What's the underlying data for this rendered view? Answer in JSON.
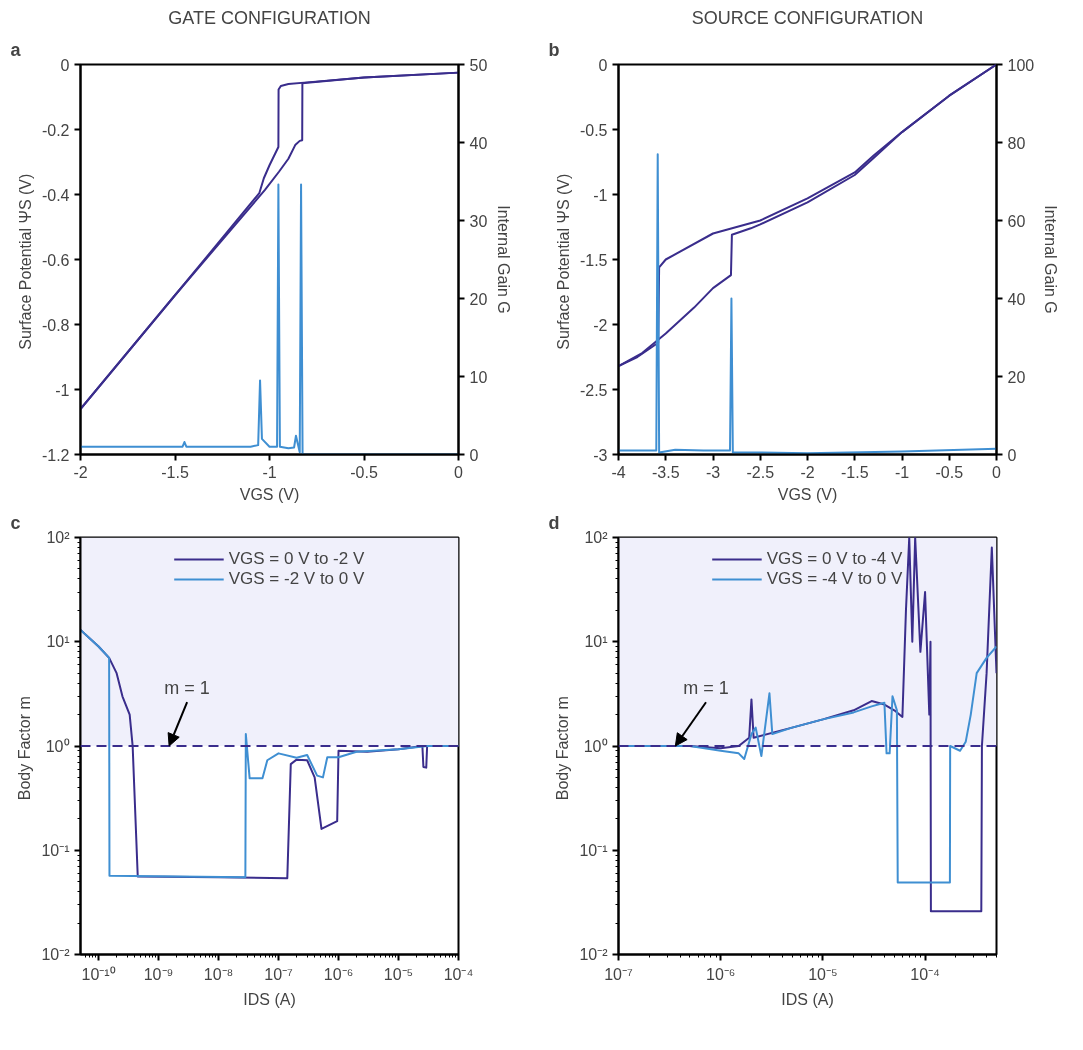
{
  "chart_data": [
    {
      "type": "line",
      "title": "GATE CONFIGURATION",
      "xlabel": "VGS (V)",
      "ylabel": "Surface Potential  ΨS (V)",
      "y2label": "Internal Gain G",
      "annotations": [
        "a"
      ],
      "xlim": [
        -2,
        0
      ],
      "ylim": [
        -1.2,
        0
      ],
      "y2lim": [
        0,
        50
      ],
      "xticks": [
        -2,
        -1.5,
        -1,
        -0.5,
        0
      ],
      "yticks": [
        -1.2,
        -1,
        -0.8,
        -0.6,
        -0.4,
        -0.2,
        0
      ],
      "y2ticks": [
        0,
        10,
        20,
        30,
        40,
        50
      ],
      "series": [
        {
          "color": "#3a2d8c",
          "x": [
            0,
            -0.5,
            -0.8,
            -0.9,
            -0.94,
            -0.952,
            -0.953,
            -1.0,
            -1.03,
            -1.054,
            -1.5,
            -2
          ],
          "values": [
            -0.025,
            -0.04,
            -0.055,
            -0.06,
            -0.066,
            -0.077,
            -0.254,
            -0.31,
            -0.35,
            -0.396,
            -0.71,
            -1.06
          ]
        },
        {
          "color": "#3a2d8c",
          "x": [
            -2,
            -1.5,
            -1.024,
            -0.95,
            -0.9,
            -0.864,
            -0.84,
            -0.827,
            -0.826,
            -0.8,
            -0.5,
            0
          ],
          "values": [
            -1.06,
            -0.71,
            -0.386,
            -0.33,
            -0.29,
            -0.248,
            -0.235,
            -0.233,
            -0.058,
            -0.056,
            -0.04,
            -0.025
          ]
        },
        {
          "color": "#3f8fd2",
          "axis": "y2",
          "x": [
            -2,
            -1.6,
            -1.46,
            -1.45,
            -1.44,
            -1.1,
            -1.06,
            -1.05,
            -1.04,
            -1.0,
            -0.96,
            -0.953,
            -0.945,
            -0.9,
            -0.87,
            -0.86,
            -0.84,
            -0.833,
            -0.825,
            -0.5,
            0
          ],
          "values": [
            1.0,
            1.0,
            1.0,
            1.6,
            1.0,
            1.0,
            1.2,
            9.5,
            2.0,
            1.0,
            1.0,
            34.6,
            1.0,
            0.8,
            0.9,
            2.4,
            0.3,
            34.6,
            0,
            0,
            0
          ]
        }
      ]
    },
    {
      "type": "line",
      "title": "SOURCE CONFIGURATION",
      "xlabel": "VGS (V)",
      "ylabel": "Surface Potential  ΨS (V)",
      "y2label": "Internal Gain G",
      "annotations": [
        "b"
      ],
      "xlim": [
        -4,
        0
      ],
      "ylim": [
        -3,
        0
      ],
      "y2lim": [
        0,
        100
      ],
      "xticks": [
        -4,
        -3.5,
        -3,
        -2.5,
        -2,
        -1.5,
        -1,
        -0.5,
        0
      ],
      "yticks": [
        -3,
        -2.5,
        -2,
        -1.5,
        -1,
        -0.5,
        0
      ],
      "y2ticks": [
        0,
        20,
        40,
        60,
        80,
        100
      ],
      "series": [
        {
          "color": "#3a2d8c",
          "x": [
            0,
            -0.5,
            -1,
            -1.3,
            -1.5,
            -2,
            -2.5,
            -3,
            -3.5,
            -3.57,
            -3.58,
            -3.8,
            -4
          ],
          "values": [
            0,
            -0.24,
            -0.52,
            -0.7,
            -0.83,
            -1.03,
            -1.2,
            -1.3,
            -1.5,
            -1.56,
            -2.14,
            -2.25,
            -2.32
          ]
        },
        {
          "color": "#3a2d8c",
          "x": [
            -4,
            -3.75,
            -3.5,
            -3.2,
            -3,
            -2.81,
            -2.8,
            -2.6,
            -2.5,
            -2,
            -1.5,
            -1.3,
            -1,
            -0.5,
            0
          ],
          "values": [
            -2.32,
            -2.22,
            -2.07,
            -1.87,
            -1.72,
            -1.62,
            -1.31,
            -1.26,
            -1.23,
            -1.06,
            -0.85,
            -0.72,
            -0.52,
            -0.24,
            0
          ]
        },
        {
          "color": "#3f8fd2",
          "axis": "y2",
          "x": [
            -4,
            -3.6,
            -3.585,
            -3.57,
            -3.4,
            -3.1,
            -2.82,
            -2.805,
            -2.79,
            -2.5,
            -2,
            -1,
            0
          ],
          "values": [
            1,
            1,
            77,
            0.5,
            1.2,
            1,
            1,
            40,
            0.5,
            0.5,
            0.3,
            0.8,
            1.5
          ]
        }
      ]
    },
    {
      "type": "line",
      "xlabel": "IDS (A)",
      "ylabel": "Body Factor  m",
      "log": "xy",
      "legend": "top",
      "annotations": [
        "c",
        {
          "text": "m = 1",
          "x": 1.5e-09,
          "y": 1
        }
      ],
      "xlim": [
        5e-11,
        0.0001
      ],
      "ylim": [
        0.01,
        100
      ],
      "xticks": [
        {
          "value": 1e-10,
          "label": "10⁻¹⁰"
        },
        {
          "value": 1e-09,
          "label": "10⁻⁹"
        },
        {
          "value": 1e-08,
          "label": "10⁻⁸"
        },
        {
          "value": 1e-07,
          "label": "10⁻⁷"
        },
        {
          "value": 1e-06,
          "label": "10⁻⁶"
        },
        {
          "value": 1e-05,
          "label": "10⁻⁵"
        },
        {
          "value": 0.0001,
          "label": "10⁻⁴"
        }
      ],
      "yticks": [
        {
          "value": 0.01,
          "label": "10⁻²"
        },
        {
          "value": 0.1,
          "label": "10⁻¹"
        },
        {
          "value": 1,
          "label": "10⁰"
        },
        {
          "value": 10,
          "label": "10¹"
        },
        {
          "value": 100,
          "label": "10²"
        }
      ],
      "ref_lines": [
        {
          "axis": "y",
          "value": 1,
          "color": "#3a2d8c",
          "line_style": "dashed"
        }
      ],
      "bands": [
        {
          "axis": "y",
          "from": 1,
          "to": 100,
          "color": "#f0f0fb"
        }
      ],
      "series": [
        {
          "name": "VGS = 0 V to -2 V",
          "color": "#3a2d8c",
          "x": [
            5e-11,
            1e-10,
            1.5e-10,
            2e-10,
            2.5e-10,
            3.3e-10,
            3.7e-10,
            4.5e-10,
            1e-08,
            1.4e-07,
            1.6e-07,
            2e-07,
            3e-07,
            4e-07,
            5.2e-07,
            9.5e-07,
            1e-06,
            3e-06,
            1e-05,
            2.5e-05,
            2.6e-05,
            2.9e-05,
            3e-05,
            0.0001
          ],
          "values": [
            13,
            9,
            7,
            5,
            3,
            2,
            1.0,
            0.056,
            0.055,
            0.054,
            0.67,
            0.74,
            0.73,
            0.5,
            0.16,
            0.19,
            0.9,
            0.88,
            0.93,
            1.0,
            0.63,
            0.62,
            1.0,
            1.0
          ]
        },
        {
          "name": "VGS = -2 V to 0 V",
          "color": "#3f8fd2",
          "x": [
            5e-11,
            1e-10,
            1.5e-10,
            1.52e-10,
            2.8e-08,
            2.85e-08,
            3.3e-08,
            5.4e-08,
            6.5e-08,
            1e-07,
            2e-07,
            3e-07,
            4.4e-07,
            5.5e-07,
            6.5e-07,
            1e-06,
            2e-06,
            1e-05,
            3e-05,
            0.0001
          ],
          "values": [
            13,
            9,
            7,
            0.057,
            0.055,
            1.3,
            0.49,
            0.49,
            0.73,
            0.85,
            0.77,
            0.82,
            0.52,
            0.5,
            0.78,
            0.78,
            0.88,
            0.93,
            1.0,
            1.0
          ]
        }
      ]
    },
    {
      "type": "line",
      "xlabel": "IDS (A)",
      "ylabel": "Body Factor  m",
      "log": "xy",
      "legend": "top",
      "annotations": [
        "d",
        {
          "text": "m = 1",
          "x": 3.6e-07,
          "y": 1
        }
      ],
      "xlim": [
        1e-07,
        0.0005
      ],
      "ylim": [
        0.01,
        100
      ],
      "xticks": [
        {
          "value": 1e-07,
          "label": "10⁻⁷"
        },
        {
          "value": 1e-06,
          "label": "10⁻⁶"
        },
        {
          "value": 1e-05,
          "label": "10⁻⁵"
        },
        {
          "value": 0.0001,
          "label": "10⁻⁴"
        }
      ],
      "yticks": [
        {
          "value": 0.01,
          "label": "10⁻²"
        },
        {
          "value": 0.1,
          "label": "10⁻¹"
        },
        {
          "value": 1,
          "label": "10⁰"
        },
        {
          "value": 10,
          "label": "10¹"
        },
        {
          "value": 100,
          "label": "10²"
        }
      ],
      "ref_lines": [
        {
          "axis": "y",
          "value": 1,
          "color": "#3a2d8c",
          "line_style": "dashed"
        }
      ],
      "bands": [
        {
          "axis": "y",
          "from": 1,
          "to": 100,
          "color": "#f0f0fb"
        }
      ],
      "series": [
        {
          "name": "VGS = 0 V to -4 V",
          "color": "#3a2d8c",
          "x": [
            1e-07,
            5e-07,
            1e-06,
            1.5e-06,
            1.9e-06,
            2e-06,
            2.1e-06,
            5e-06,
            1e-05,
            2e-05,
            3e-05,
            4e-05,
            5e-05,
            6e-05,
            6.5e-05,
            7e-05,
            7.5e-05,
            8e-05,
            9e-05,
            0.0001,
            0.00011,
            0.000113,
            0.000114,
            0.000355,
            0.00036,
            0.0004,
            0.00045,
            0.0005
          ],
          "values": [
            1,
            1.0,
            0.95,
            1.0,
            1.2,
            2.8,
            1.2,
            1.5,
            1.8,
            2.2,
            2.7,
            2.5,
            2.2,
            1.9,
            20,
            100,
            10,
            100,
            8,
            30,
            2,
            10,
            0.026,
            0.026,
            1,
            5,
            80,
            5
          ]
        },
        {
          "name": "VGS = -4 V to 0 V",
          "color": "#3f8fd2",
          "x": [
            1e-07,
            5e-07,
            1e-06,
            1.5e-06,
            1.7e-06,
            2e-06,
            2.2e-06,
            2.5e-06,
            3e-06,
            3.2e-06,
            5e-06,
            1e-05,
            2e-05,
            3e-05,
            4e-05,
            4.2e-05,
            4.5e-05,
            4.8e-05,
            5.3e-05,
            5.4e-05,
            0.000175,
            0.000176,
            0.00022,
            0.00025,
            0.00028,
            0.00032,
            0.0004,
            0.0005
          ],
          "values": [
            1,
            1.0,
            0.9,
            0.85,
            0.75,
            1.3,
            1.5,
            0.8,
            3.2,
            1.3,
            1.5,
            1.8,
            2.1,
            2.4,
            2.6,
            0.85,
            0.85,
            3,
            2.2,
            0.049,
            0.049,
            1.0,
            0.9,
            1.1,
            2,
            5,
            7,
            9
          ]
        }
      ]
    }
  ]
}
